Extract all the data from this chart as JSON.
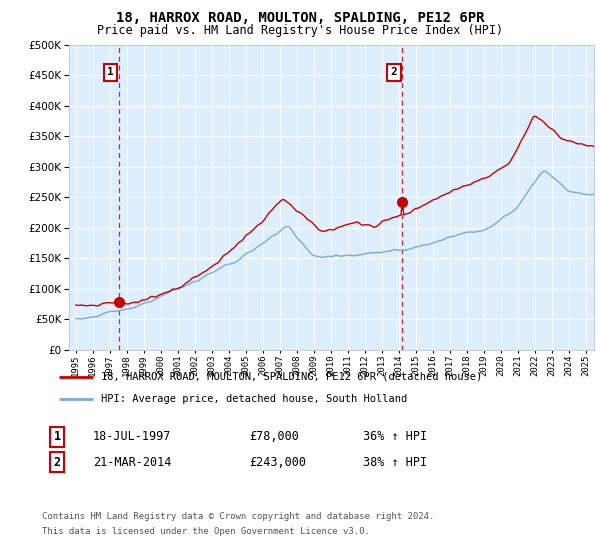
{
  "title": "18, HARROX ROAD, MOULTON, SPALDING, PE12 6PR",
  "subtitle": "Price paid vs. HM Land Registry's House Price Index (HPI)",
  "legend_line1": "18, HARROX ROAD, MOULTON, SPALDING, PE12 6PR (detached house)",
  "legend_line2": "HPI: Average price, detached house, South Holland",
  "ann1_label": "1",
  "ann1_date": "18-JUL-1997",
  "ann1_price": "£78,000",
  "ann1_hpi": "36% ↑ HPI",
  "ann1_x": 1997.54,
  "ann1_y": 78000,
  "ann2_label": "2",
  "ann2_date": "21-MAR-2014",
  "ann2_price": "£243,000",
  "ann2_hpi": "38% ↑ HPI",
  "ann2_x": 2014.22,
  "ann2_y": 243000,
  "footer_line1": "Contains HM Land Registry data © Crown copyright and database right 2024.",
  "footer_line2": "This data is licensed under the Open Government Licence v3.0.",
  "price_color": "#cc0000",
  "hpi_color": "#7aadcc",
  "bg_color": "#ddeeff",
  "ylim": [
    0,
    500000
  ],
  "xmin": 1994.6,
  "xmax": 2025.5
}
